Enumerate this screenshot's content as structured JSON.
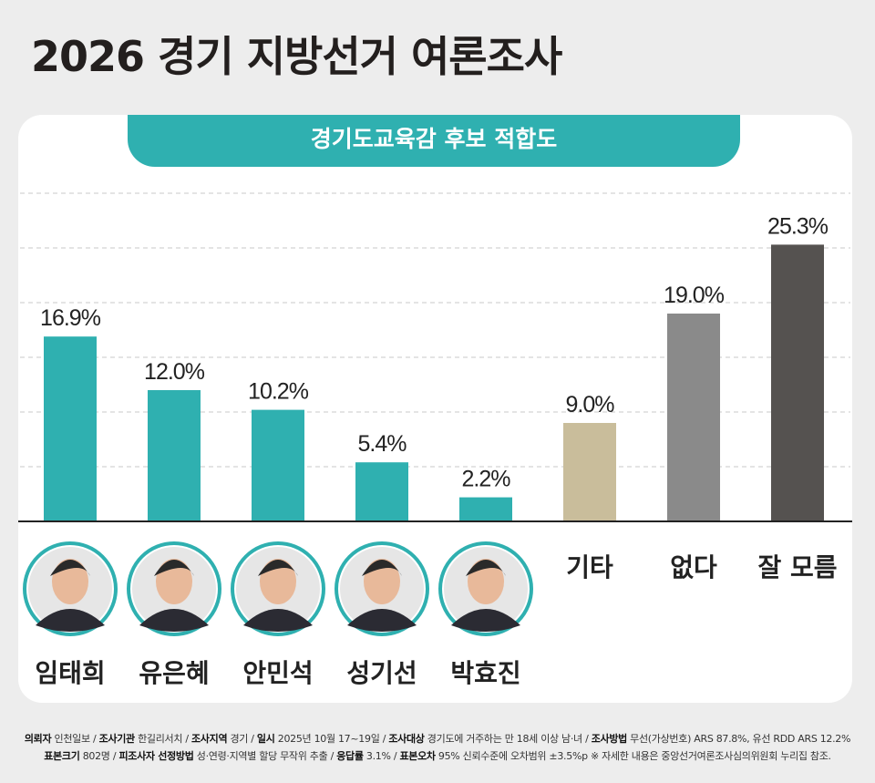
{
  "header": {
    "title": "2026 경기 지방선거 여론조사"
  },
  "chart_data": {
    "type": "bar",
    "title": "경기도교육감 후보 적합도",
    "categories": [
      "임태희",
      "유은혜",
      "안민석",
      "성기선",
      "박효진",
      "기타",
      "없다",
      "잘 모름"
    ],
    "values": [
      16.9,
      12.0,
      10.2,
      5.4,
      2.2,
      9.0,
      19.0,
      25.3
    ],
    "data_labels": [
      "16.9%",
      "12.0%",
      "10.2%",
      "5.4%",
      "2.2%",
      "9.0%",
      "19.0%",
      "25.3%"
    ],
    "bar_colors": [
      "#2fb0b0",
      "#2fb0b0",
      "#2fb0b0",
      "#2fb0b0",
      "#2fb0b0",
      "#c9bd9b",
      "#8a8a8a",
      "#555250"
    ],
    "candidate_photos": [
      true,
      true,
      true,
      true,
      true,
      false,
      false,
      false
    ],
    "ylim": [
      0,
      30
    ],
    "grid": true,
    "gridline_style": "dashed"
  },
  "footer": {
    "line1": [
      {
        "k": "의뢰자",
        "v": "인천일보"
      },
      {
        "k": "조사기관",
        "v": "한길리서치"
      },
      {
        "k": "조사지역",
        "v": "경기"
      },
      {
        "k": "일시",
        "v": "2025년 10월 17~19일"
      },
      {
        "k": "조사대상",
        "v": "경기도에 거주하는 만 18세 이상 남·녀"
      },
      {
        "k": "조사방법",
        "v": "무선(가상번호) ARS 87.8%, 유선 RDD ARS 12.2%"
      }
    ],
    "line2": [
      {
        "k": "표본크기",
        "v": "802명"
      },
      {
        "k": "피조사자 선정방법",
        "v": "성·연령·지역별 할당 무작위 추출"
      },
      {
        "k": "응답률",
        "v": "3.1%"
      },
      {
        "k": "표본오차",
        "v": "95% 신뢰수준에 오차범위 ±3.5%p"
      }
    ],
    "note": "※ 자세한 내용은 중앙선거여론조사심의위원회 누리집 참조."
  }
}
